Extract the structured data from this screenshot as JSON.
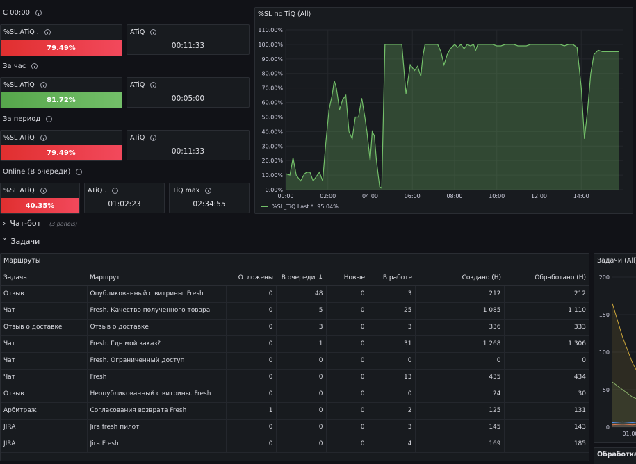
{
  "rows": {
    "since_midnight": "С 00:00",
    "per_hour": "За час",
    "per_period": "За период",
    "online": "Online (В очереди)"
  },
  "stats": {
    "r1_sl_title": "%SL ATiQ .",
    "r1_sl_value": "79.49%",
    "r1_atiq_title": "ATiQ",
    "r1_atiq_value": "00:11:33",
    "r2_sl_title": "%SL ATiQ",
    "r2_sl_value": "81.72%",
    "r2_atiq_title": "ATiQ",
    "r2_atiq_value": "00:05:00",
    "r3_sl_title": "%SL ATiQ",
    "r3_sl_value": "79.49%",
    "r3_atiq_title": "ATiQ",
    "r3_atiq_value": "00:11:33",
    "r4_sl_title": "%SL ATiQ",
    "r4_sl_value": "40.35%",
    "r4_atiq_title": "ATiQ .",
    "r4_atiq_value": "01:02:23",
    "r4_tiq_title": "TiQ max",
    "r4_tiq_value": "02:34:55"
  },
  "sections": {
    "chatbot": "Чат-бот",
    "chatbot_panels": "(3 panels)",
    "tasks": "Задачи"
  },
  "routes_panel": {
    "title": "Маршруты",
    "columns": [
      "Задача",
      "Маршрут",
      "Отложены",
      "В очереди",
      "Новые",
      "В работе",
      "Создано (Н)",
      "Обработано (Н)"
    ],
    "sort_icon": "↓",
    "rows": [
      [
        "Отзыв",
        "Опубликованный с витрины. Fresh",
        "0",
        "48",
        "0",
        "3",
        "212",
        "212"
      ],
      [
        "Чат",
        "Fresh. Качество полученного товара",
        "0",
        "5",
        "0",
        "25",
        "1 085",
        "1 110"
      ],
      [
        "Отзыв о доставке",
        "Отзыв о доставке",
        "0",
        "3",
        "0",
        "3",
        "336",
        "333"
      ],
      [
        "Чат",
        "Fresh. Где мой заказ?",
        "0",
        "1",
        "0",
        "31",
        "1 268",
        "1 306"
      ],
      [
        "Чат",
        "Fresh. Ограниченный доступ",
        "0",
        "0",
        "0",
        "0",
        "0",
        "0"
      ],
      [
        "Чат",
        "Fresh",
        "0",
        "0",
        "0",
        "13",
        "435",
        "434"
      ],
      [
        "Отзыв",
        "Неопубликованный с витрины. Fresh",
        "0",
        "0",
        "0",
        "0",
        "24",
        "30"
      ],
      [
        "Арбитраж",
        "Согласования возврата Fresh",
        "1",
        "0",
        "0",
        "2",
        "125",
        "131"
      ],
      [
        "JIRA",
        "Jira fresh пилот",
        "0",
        "0",
        "0",
        "3",
        "145",
        "143"
      ],
      [
        "JIRA",
        "Jira Fresh",
        "0",
        "0",
        "0",
        "4",
        "169",
        "185"
      ]
    ]
  },
  "sl_chart_title": "%SL по TiQ (All)",
  "tasks_chart_title": "Задачи (All)",
  "processing_title": "Обработка",
  "chart_data": [
    {
      "type": "area",
      "title": "%SL по TiQ (All)",
      "y_ticks": [
        "0.00%",
        "10.00%",
        "20.00%",
        "30.00%",
        "40.00%",
        "50.00%",
        "60.00%",
        "70.00%",
        "80.00%",
        "90.00%",
        "100.00%",
        "110.00%"
      ],
      "x_ticks": [
        "00:00",
        "02:00",
        "04:00",
        "06:00",
        "08:00",
        "10:00",
        "12:00",
        "14:00"
      ],
      "ylim": [
        0,
        110
      ],
      "xlim": [
        0,
        16
      ],
      "legend": "%SL_TiQ  Last *: 95.04%",
      "series_name": "%SL_TiQ",
      "color": "#73bf69",
      "x": [
        0,
        0.2,
        0.35,
        0.5,
        0.7,
        0.9,
        1.0,
        1.15,
        1.3,
        1.45,
        1.6,
        1.75,
        1.9,
        2.05,
        2.2,
        2.3,
        2.4,
        2.55,
        2.7,
        2.85,
        3.0,
        3.15,
        3.3,
        3.45,
        3.6,
        3.75,
        3.85,
        4.0,
        4.1,
        4.2,
        4.3,
        4.45,
        4.55,
        4.7,
        4.85,
        5.0,
        5.1,
        5.25,
        5.35,
        5.5,
        5.7,
        5.9,
        6.1,
        6.25,
        6.4,
        6.5,
        6.6,
        6.75,
        6.9,
        7.05,
        7.2,
        7.35,
        7.5,
        7.65,
        7.8,
        8.0,
        8.15,
        8.3,
        8.45,
        8.6,
        8.75,
        8.9,
        9.0,
        9.1,
        9.2,
        9.35,
        9.5,
        9.65,
        9.8,
        10.0,
        10.2,
        10.4,
        10.6,
        10.8,
        11.0,
        11.2,
        11.4,
        11.6,
        11.8,
        12.0,
        12.2,
        12.4,
        12.6,
        12.8,
        13.0,
        13.2,
        13.4,
        13.6,
        13.8,
        14.0,
        14.15,
        14.3,
        14.45,
        14.6,
        14.8,
        15.0,
        15.2,
        15.4,
        15.6,
        15.8
      ],
      "y": [
        11,
        10,
        22,
        10,
        6,
        11,
        12,
        12,
        6,
        9,
        12,
        6,
        32,
        55,
        65,
        75,
        70,
        55,
        62,
        65,
        40,
        35,
        50,
        50,
        63,
        50,
        40,
        20,
        40,
        37,
        20,
        2,
        1,
        100,
        100,
        100,
        100,
        100,
        100,
        100,
        66,
        86,
        82,
        85,
        78,
        92,
        100,
        100,
        100,
        100,
        100,
        95,
        86,
        93,
        97,
        100,
        98,
        100,
        97,
        100,
        99,
        100,
        96,
        100,
        100,
        100,
        100,
        100,
        100,
        99,
        99,
        100,
        100,
        100,
        99,
        99,
        99,
        100,
        100,
        100,
        100,
        100,
        100,
        100,
        100,
        99,
        100,
        100,
        98,
        70,
        35,
        55,
        80,
        93,
        96,
        95,
        95,
        95,
        95,
        95
      ]
    },
    {
      "type": "line",
      "title": "Задачи (All)",
      "y_ticks": [
        "200",
        "150",
        "100",
        "50",
        "0"
      ],
      "x_ticks": [
        "01:00"
      ],
      "ylim": [
        0,
        200
      ],
      "series": [
        {
          "color": "#c8a33a",
          "values": [
            165,
            120,
            85,
            60
          ]
        },
        {
          "color": "#8ab06a",
          "values": [
            60,
            50,
            40,
            35
          ]
        },
        {
          "color": "#5794f2",
          "values": [
            6,
            7,
            6,
            8
          ]
        },
        {
          "color": "#e07a4f",
          "values": [
            3,
            4,
            3,
            5
          ]
        }
      ]
    }
  ]
}
